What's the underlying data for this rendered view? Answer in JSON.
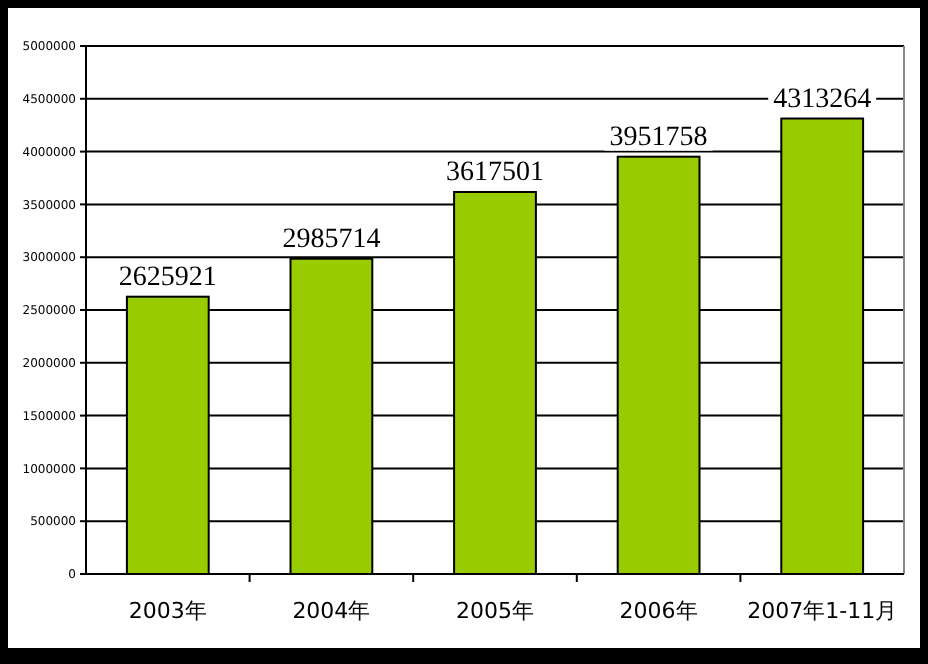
{
  "chart_data": {
    "type": "bar",
    "categories": [
      "2003年",
      "2004年",
      "2005年",
      "2006年",
      "2007年1-11月"
    ],
    "values": [
      2625921,
      2985714,
      3617501,
      3951758,
      4313264
    ],
    "color": "#99cc00",
    "data_labels": true,
    "grid": "y",
    "ylim": [
      0,
      5000000
    ],
    "yticks": [
      0,
      500000,
      1000000,
      1500000,
      2000000,
      2500000,
      3000000,
      3500000,
      4000000,
      4500000,
      5000000
    ]
  }
}
